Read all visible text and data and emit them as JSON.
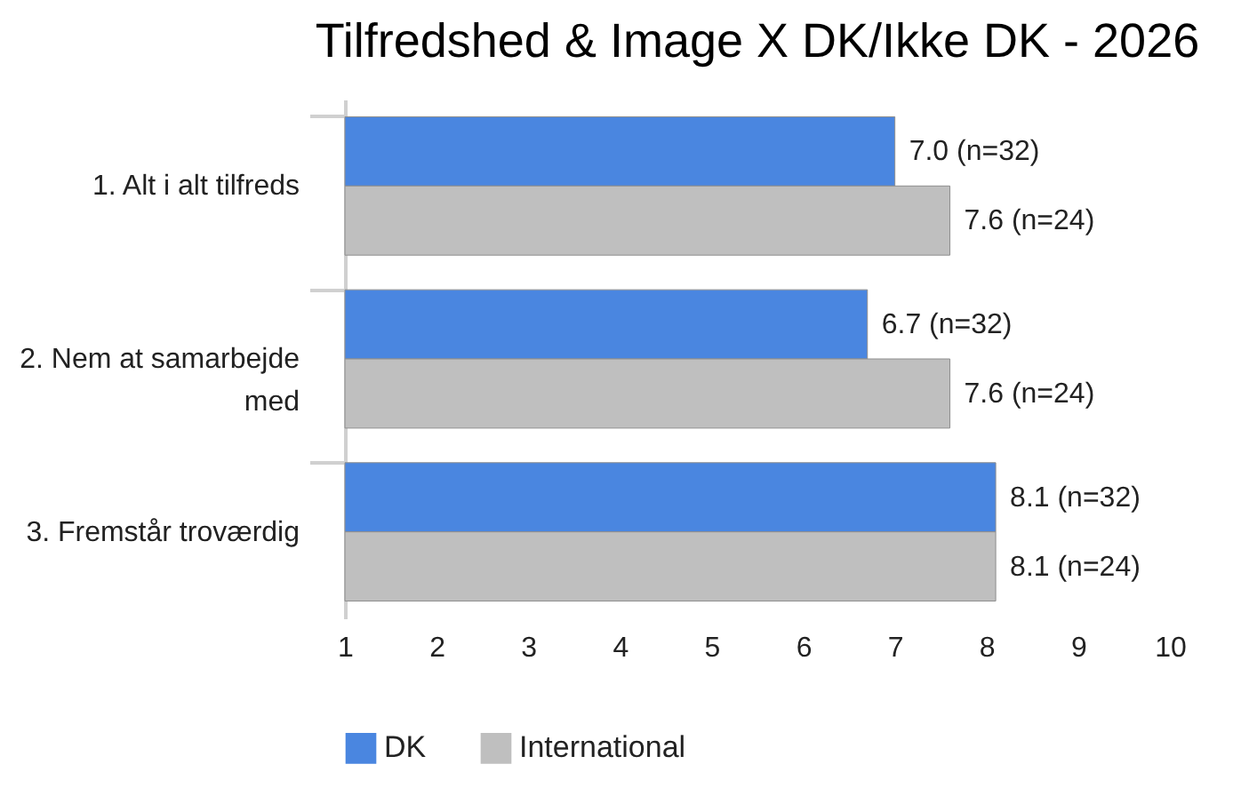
{
  "chart_data": {
    "type": "bar",
    "orientation": "horizontal",
    "title": "Tilfredshed & Image X DK/Ikke DK - 2026",
    "categories": [
      "1. Alt i alt tilfreds",
      "2. Nem at samarbejde med",
      "3. Fremstår troværdig"
    ],
    "series": [
      {
        "name": "DK",
        "color": "#4a86e0",
        "values": [
          7.0,
          6.7,
          8.1
        ],
        "value_labels": [
          "7.0 (n=32)",
          "6.7 (n=32)",
          "8.1 (n=32)"
        ]
      },
      {
        "name": "International",
        "color": "#bfbfbf",
        "values": [
          7.6,
          7.6,
          8.1
        ],
        "value_labels": [
          "7.6 (n=24)",
          "7.6 (n=24)",
          "8.1 (n=24)"
        ]
      }
    ],
    "xlim": [
      1,
      10
    ],
    "xticks": [
      1,
      2,
      3,
      4,
      5,
      6,
      7,
      8,
      9,
      10
    ],
    "grid": false,
    "legend": "bottom"
  }
}
